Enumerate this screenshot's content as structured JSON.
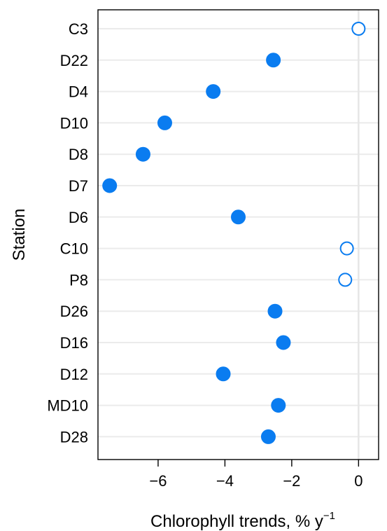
{
  "chart_data": {
    "type": "scatter",
    "xlabel": "Chlorophyll trends, % y",
    "xlabel_superscript": "−1",
    "ylabel": "Station",
    "xlim": [
      -7.8,
      0.6
    ],
    "xticks": [
      -6,
      -4,
      -2,
      0
    ],
    "xtick_labels": [
      "−6",
      "−4",
      "−2",
      "0"
    ],
    "grid": true,
    "vertical_reference_line_at": 0,
    "marker_color": "#0A7CF0",
    "stations": [
      {
        "station": "C3",
        "trend": 0.0,
        "significant": false
      },
      {
        "station": "D22",
        "trend": -2.55,
        "significant": true
      },
      {
        "station": "D4",
        "trend": -4.35,
        "significant": true
      },
      {
        "station": "D10",
        "trend": -5.8,
        "significant": true
      },
      {
        "station": "D8",
        "trend": -6.45,
        "significant": true
      },
      {
        "station": "D7",
        "trend": -7.45,
        "significant": true
      },
      {
        "station": "D6",
        "trend": -3.6,
        "significant": true
      },
      {
        "station": "C10",
        "trend": -0.35,
        "significant": false
      },
      {
        "station": "P8",
        "trend": -0.4,
        "significant": false
      },
      {
        "station": "D26",
        "trend": -2.5,
        "significant": true
      },
      {
        "station": "D16",
        "trend": -2.25,
        "significant": true
      },
      {
        "station": "D12",
        "trend": -4.05,
        "significant": true
      },
      {
        "station": "MD10",
        "trend": -2.4,
        "significant": true
      },
      {
        "station": "D28",
        "trend": -2.7,
        "significant": true
      }
    ]
  }
}
